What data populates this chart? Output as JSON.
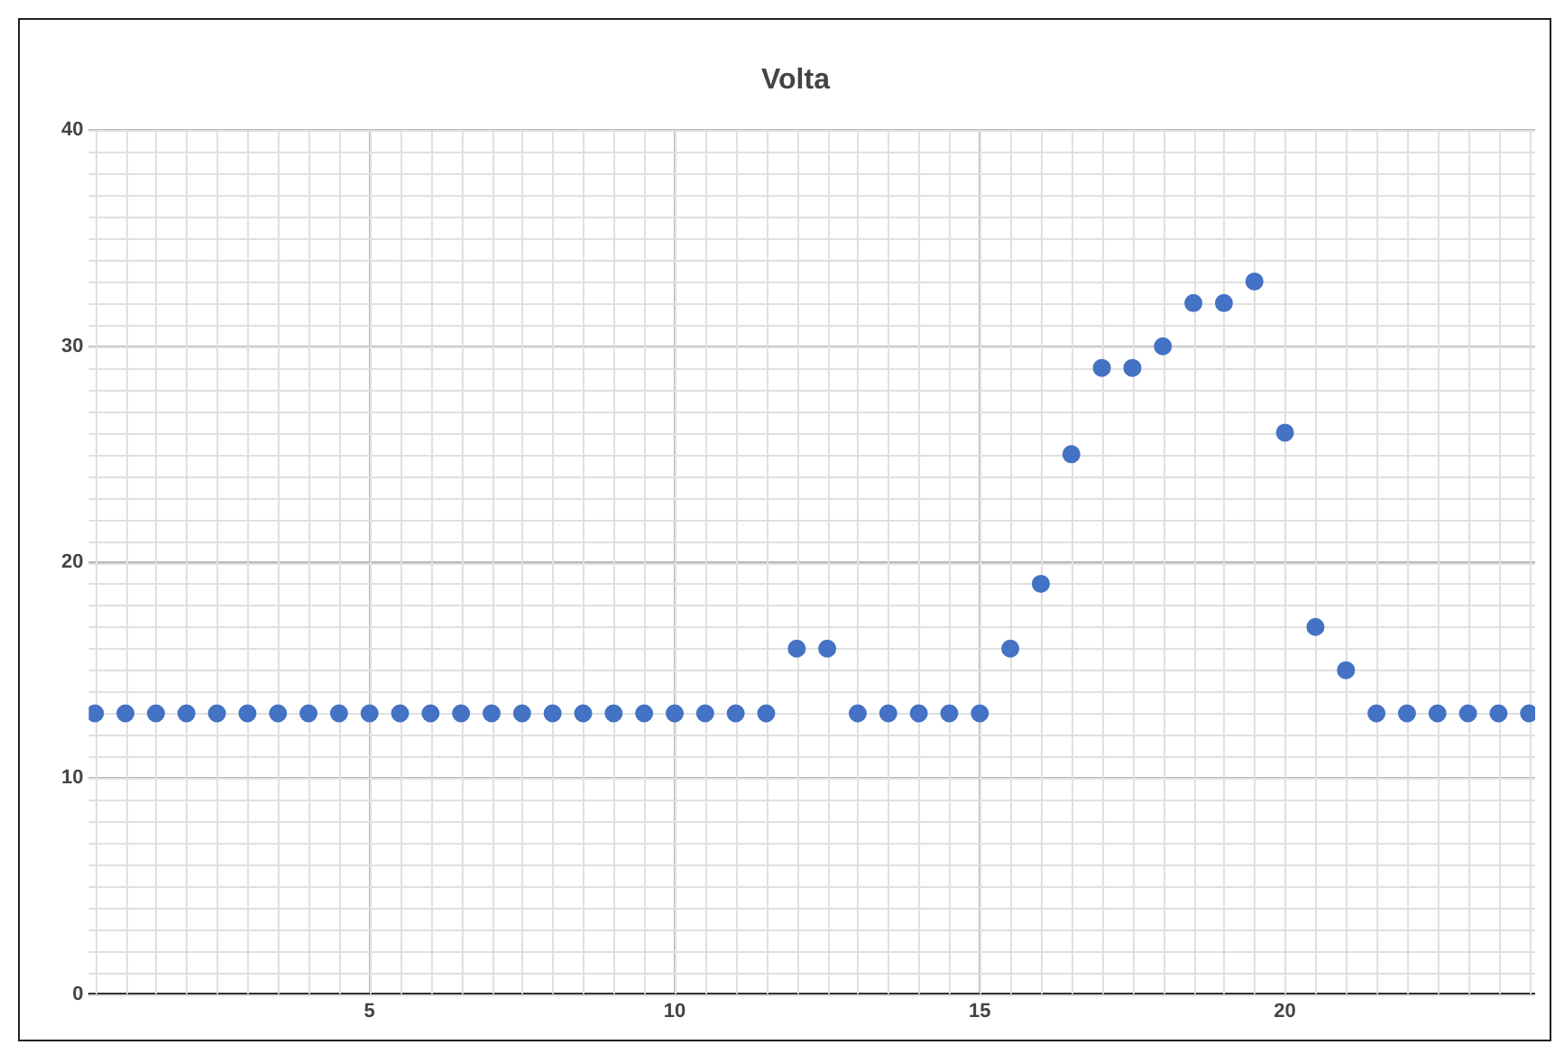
{
  "chart_data": {
    "type": "scatter",
    "title": "Volta",
    "x": [
      0.5,
      1,
      1.5,
      2,
      2.5,
      3,
      3.5,
      4,
      4.5,
      5,
      5.5,
      6,
      6.5,
      7,
      7.5,
      8,
      8.5,
      9,
      9.5,
      10,
      10.5,
      11,
      11.5,
      12,
      12.5,
      13,
      13.5,
      14,
      14.5,
      15,
      15.5,
      16,
      16.5,
      17,
      17.5,
      18,
      18.5,
      19,
      19.5,
      20,
      20.5,
      21,
      21.5,
      22,
      22.5,
      23,
      23.5,
      24
    ],
    "series": [
      {
        "color": "#4472c4",
        "values": [
          13,
          13,
          13,
          13,
          13,
          13,
          13,
          13,
          13,
          13,
          13,
          13,
          13,
          13,
          13,
          13,
          13,
          13,
          13,
          13,
          13,
          13,
          13,
          16,
          16,
          13,
          13,
          13,
          13,
          13,
          16,
          19,
          25,
          29,
          29,
          30,
          32,
          32,
          33,
          26,
          17,
          15,
          13,
          13,
          13,
          13,
          13,
          13
        ]
      }
    ],
    "xlim": [
      0.4,
      24.1
    ],
    "xticks": [
      5,
      10,
      15,
      20
    ],
    "ylim": [
      0,
      40
    ],
    "yticks": [
      0,
      10,
      20,
      30,
      40
    ],
    "grid": true,
    "legend": false,
    "marker": "circle"
  }
}
